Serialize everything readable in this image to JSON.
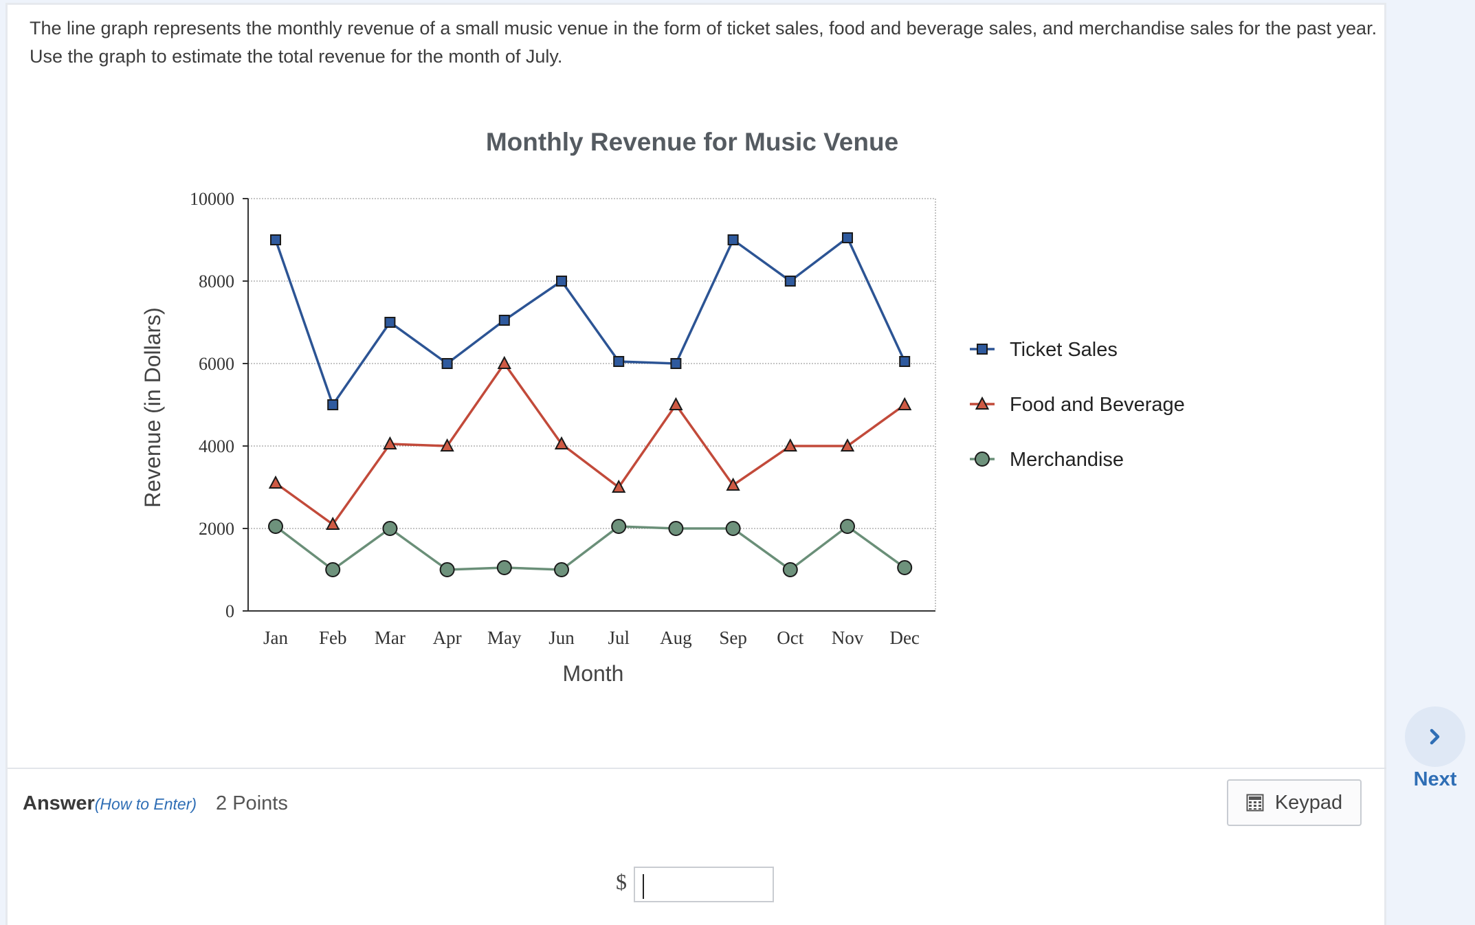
{
  "question": {
    "text": "The line graph represents the monthly revenue of a small music venue in the form of ticket sales, food and beverage sales, and merchandise sales for the past year. Use the graph to estimate the total revenue for the month of July."
  },
  "chart_data": {
    "type": "line",
    "title": "Monthly Revenue for Music Venue",
    "xlabel": "Month",
    "ylabel": "Revenue (in Dollars)",
    "categories": [
      "Jan",
      "Feb",
      "Mar",
      "Apr",
      "May",
      "Jun",
      "Jul",
      "Aug",
      "Sep",
      "Oct",
      "Nov",
      "Dec"
    ],
    "ylim": [
      0,
      10000
    ],
    "yticks": [
      0,
      2000,
      4000,
      6000,
      8000,
      10000
    ],
    "grid": true,
    "legend_position": "right",
    "series": [
      {
        "name": "Ticket Sales",
        "marker": "square",
        "color": "#2c5494",
        "fill": "#2f5a9e",
        "values": [
          9000,
          5000,
          7000,
          6000,
          7050,
          8000,
          6050,
          6000,
          9000,
          8000,
          9050,
          6050
        ]
      },
      {
        "name": "Food and Beverage",
        "marker": "triangle",
        "color": "#c24a3a",
        "fill": "#cf5a44",
        "values": [
          3100,
          2100,
          4050,
          4000,
          6000,
          4050,
          3000,
          5000,
          3050,
          4000,
          4000,
          5000
        ]
      },
      {
        "name": "Merchandise",
        "marker": "circle",
        "color": "#6a8f78",
        "fill": "#6e927c",
        "values": [
          2050,
          1000,
          2000,
          1000,
          1050,
          1000,
          2050,
          2000,
          2000,
          1000,
          2050,
          1050
        ]
      }
    ]
  },
  "answer": {
    "label": "Answer",
    "how_to_enter": "(How to Enter)",
    "points": "2 Points",
    "currency_symbol": "$",
    "value": ""
  },
  "keypad": {
    "label": "Keypad",
    "icon": "calculator-icon"
  },
  "nav": {
    "next_label": "Next",
    "icon": "chevron-right-icon"
  }
}
